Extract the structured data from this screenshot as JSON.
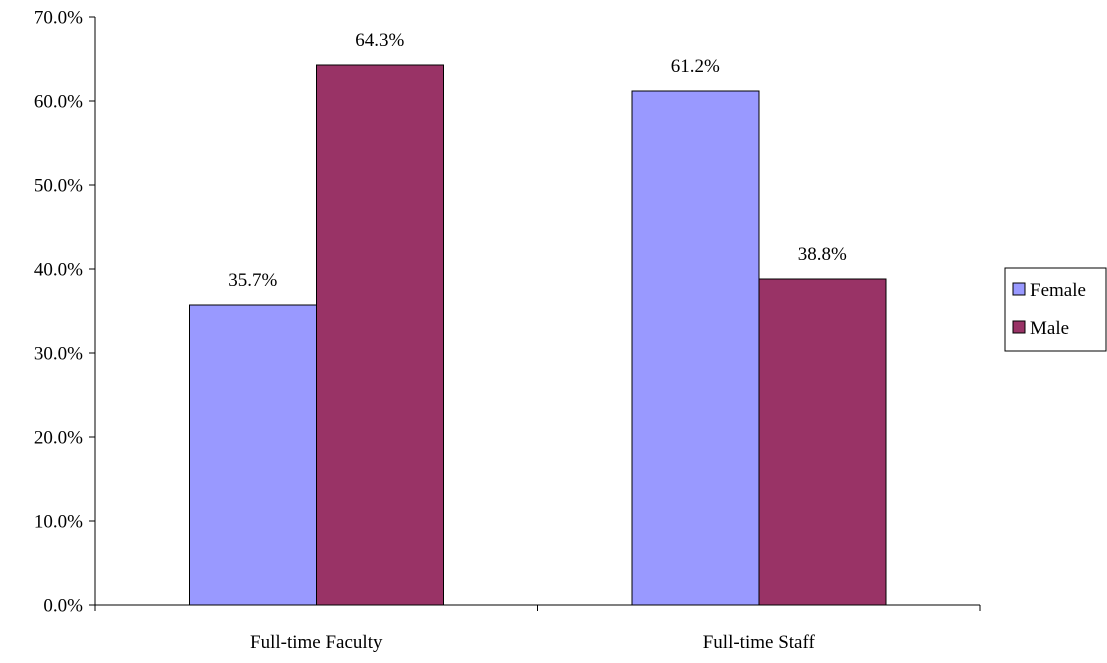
{
  "chart_data": {
    "type": "bar",
    "title": "",
    "xlabel": "",
    "ylabel": "",
    "categories": [
      "Full-time Faculty",
      "Full-time Staff"
    ],
    "series": [
      {
        "name": "Female",
        "values": [
          35.7,
          61.2
        ],
        "labels": [
          "35.7%",
          "61.2%"
        ],
        "color": "#9999FF"
      },
      {
        "name": "Male",
        "values": [
          64.3,
          38.8
        ],
        "labels": [
          "64.3%",
          "38.8%"
        ],
        "color": "#993366"
      }
    ],
    "ylim": [
      0,
      70
    ],
    "y_ticks": [
      0,
      10,
      20,
      30,
      40,
      50,
      60,
      70
    ],
    "y_tick_labels": [
      "0.0%",
      "10.0%",
      "20.0%",
      "30.0%",
      "40.0%",
      "50.0%",
      "60.0%",
      "70.0%"
    ],
    "grid": false,
    "legend": {
      "position": "right"
    }
  }
}
